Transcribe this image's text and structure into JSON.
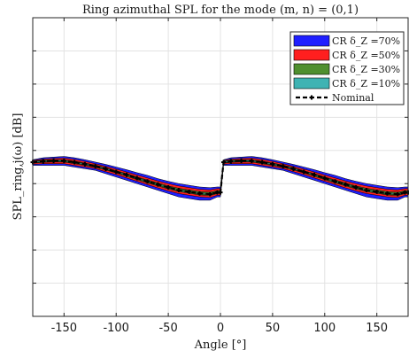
{
  "chart_data": {
    "type": "area",
    "title": "Ring azimuthal SPL for the mode (m, n) = (0,1)",
    "xlabel": "Angle [°]",
    "ylabel": "SPL_ring,j(ω) [dB]",
    "xlim": [
      -180,
      180
    ],
    "ylim": [
      0,
      9
    ],
    "x_ticks": [
      -150,
      -100,
      -50,
      0,
      50,
      100,
      150
    ],
    "y_ticks": [
      1,
      2,
      3,
      4,
      5,
      6,
      7,
      8
    ],
    "y_tick_labels_shown": false,
    "grid": true,
    "legend_position": "top-right",
    "x": [
      -180,
      -170,
      -160,
      -150,
      -140,
      -130,
      -120,
      -110,
      -100,
      -90,
      -80,
      -70,
      -60,
      -50,
      -40,
      -30,
      -20,
      -10,
      -3,
      0,
      3,
      10,
      20,
      30,
      40,
      50,
      60,
      70,
      80,
      90,
      100,
      110,
      120,
      130,
      140,
      150,
      160,
      170,
      177,
      180
    ],
    "series": [
      {
        "name": "CR δ_Z =70%",
        "color": "#1f1fff",
        "kind": "band",
        "lower": [
          4.55,
          4.55,
          4.55,
          4.55,
          4.5,
          4.45,
          4.4,
          4.3,
          4.2,
          4.1,
          4.0,
          3.9,
          3.8,
          3.7,
          3.6,
          3.55,
          3.5,
          3.5,
          3.6,
          3.6,
          4.55,
          4.55,
          4.55,
          4.55,
          4.5,
          4.45,
          4.4,
          4.3,
          4.2,
          4.1,
          4.0,
          3.9,
          3.8,
          3.7,
          3.6,
          3.55,
          3.5,
          3.5,
          3.6,
          3.6
        ],
        "upper": [
          4.72,
          4.78,
          4.8,
          4.82,
          4.78,
          4.72,
          4.65,
          4.58,
          4.5,
          4.42,
          4.33,
          4.25,
          4.15,
          4.07,
          4.0,
          3.95,
          3.9,
          3.88,
          3.9,
          3.9,
          4.72,
          4.78,
          4.8,
          4.82,
          4.78,
          4.72,
          4.65,
          4.58,
          4.5,
          4.42,
          4.33,
          4.25,
          4.15,
          4.07,
          4.0,
          3.95,
          3.9,
          3.88,
          3.9,
          3.9
        ]
      },
      {
        "name": "CR δ_Z =50%",
        "color": "#ff1f1f",
        "kind": "band",
        "lower": [
          4.58,
          4.6,
          4.6,
          4.6,
          4.55,
          4.5,
          4.45,
          4.36,
          4.27,
          4.17,
          4.07,
          3.97,
          3.87,
          3.78,
          3.7,
          3.65,
          3.6,
          3.58,
          3.65,
          3.65,
          4.58,
          4.6,
          4.6,
          4.6,
          4.55,
          4.5,
          4.45,
          4.36,
          4.27,
          4.17,
          4.07,
          3.97,
          3.87,
          3.78,
          3.7,
          3.65,
          3.6,
          3.58,
          3.65,
          3.65
        ],
        "upper": [
          4.7,
          4.74,
          4.76,
          4.77,
          4.73,
          4.67,
          4.6,
          4.52,
          4.44,
          4.35,
          4.26,
          4.17,
          4.08,
          4.0,
          3.93,
          3.88,
          3.83,
          3.81,
          3.85,
          3.85,
          4.7,
          4.74,
          4.76,
          4.77,
          4.73,
          4.67,
          4.6,
          4.52,
          4.44,
          4.35,
          4.26,
          4.17,
          4.08,
          4.0,
          3.93,
          3.88,
          3.83,
          3.81,
          3.85,
          3.85
        ]
      },
      {
        "name": "CR δ_Z =30%",
        "color": "#4f8f2f",
        "kind": "band",
        "lower": [
          4.61,
          4.64,
          4.65,
          4.65,
          4.6,
          4.55,
          4.49,
          4.41,
          4.32,
          4.22,
          4.12,
          4.02,
          3.93,
          3.84,
          3.76,
          3.71,
          3.66,
          3.64,
          3.7,
          3.7,
          4.61,
          4.64,
          4.65,
          4.65,
          4.6,
          4.55,
          4.49,
          4.41,
          4.32,
          4.22,
          4.12,
          4.02,
          3.93,
          3.84,
          3.76,
          3.71,
          3.66,
          3.64,
          3.7,
          3.7
        ],
        "upper": [
          4.68,
          4.71,
          4.72,
          4.72,
          4.68,
          4.62,
          4.56,
          4.48,
          4.39,
          4.3,
          4.2,
          4.11,
          4.02,
          3.93,
          3.86,
          3.81,
          3.76,
          3.74,
          3.79,
          3.79,
          4.68,
          4.71,
          4.72,
          4.72,
          4.68,
          4.62,
          4.56,
          4.48,
          4.39,
          4.3,
          4.2,
          4.11,
          4.02,
          3.93,
          3.86,
          3.81,
          3.76,
          3.74,
          3.79,
          3.79
        ]
      },
      {
        "name": "CR δ_Z =10%",
        "color": "#3fb3b3",
        "kind": "band",
        "lower": [
          4.63,
          4.66,
          4.67,
          4.67,
          4.63,
          4.57,
          4.51,
          4.43,
          4.34,
          4.25,
          4.15,
          4.05,
          3.96,
          3.87,
          3.79,
          3.74,
          3.69,
          3.67,
          3.72,
          3.72,
          4.63,
          4.66,
          4.67,
          4.67,
          4.63,
          4.57,
          4.51,
          4.43,
          4.34,
          4.25,
          4.15,
          4.05,
          3.96,
          3.87,
          3.79,
          3.74,
          3.69,
          3.67,
          3.72,
          3.72
        ],
        "upper": [
          4.66,
          4.69,
          4.7,
          4.7,
          4.66,
          4.6,
          4.54,
          4.46,
          4.37,
          4.28,
          4.18,
          4.08,
          3.99,
          3.9,
          3.82,
          3.77,
          3.72,
          3.7,
          3.75,
          3.75,
          4.66,
          4.69,
          4.7,
          4.7,
          4.66,
          4.6,
          4.54,
          4.46,
          4.37,
          4.28,
          4.18,
          4.08,
          3.99,
          3.9,
          3.82,
          3.77,
          3.72,
          3.7,
          3.75,
          3.75
        ]
      },
      {
        "name": "Nominal",
        "color": "#000000",
        "kind": "line",
        "values": [
          4.645,
          4.675,
          4.685,
          4.685,
          4.645,
          4.585,
          4.525,
          4.445,
          4.355,
          4.265,
          4.165,
          4.065,
          3.975,
          3.885,
          3.805,
          3.755,
          3.705,
          3.685,
          3.735,
          3.735,
          4.645,
          4.675,
          4.685,
          4.685,
          4.645,
          4.585,
          4.525,
          4.445,
          4.355,
          4.265,
          4.165,
          4.065,
          3.975,
          3.885,
          3.805,
          3.755,
          3.705,
          3.685,
          3.735,
          3.735
        ]
      }
    ]
  }
}
